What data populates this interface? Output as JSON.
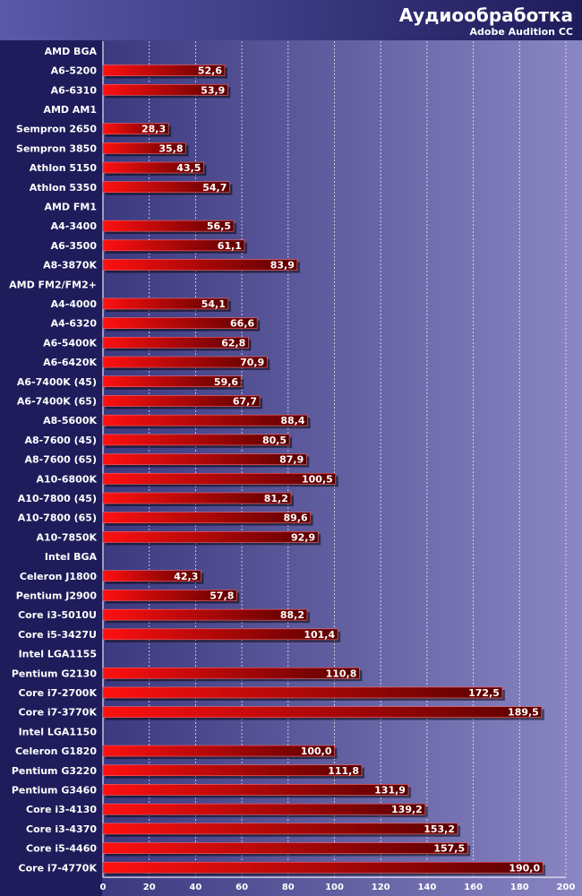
{
  "chart_data": {
    "type": "bar",
    "orientation": "horizontal",
    "title": "Аудиообработка",
    "subtitle": "Adobe Audition CC",
    "xlim": [
      0,
      200
    ],
    "xticks": [
      0,
      20,
      40,
      60,
      80,
      100,
      120,
      140,
      160,
      180,
      200
    ],
    "grid": true,
    "rows": [
      {
        "label": "AMD BGA",
        "group": true
      },
      {
        "label": "A6-5200",
        "value": 52.6,
        "value_label": "52,6"
      },
      {
        "label": "A6-6310",
        "value": 53.9,
        "value_label": "53,9"
      },
      {
        "label": "AMD AM1",
        "group": true
      },
      {
        "label": "Sempron 2650",
        "value": 28.3,
        "value_label": "28,3"
      },
      {
        "label": "Sempron 3850",
        "value": 35.8,
        "value_label": "35,8"
      },
      {
        "label": "Athlon 5150",
        "value": 43.5,
        "value_label": "43,5"
      },
      {
        "label": "Athlon 5350",
        "value": 54.7,
        "value_label": "54,7"
      },
      {
        "label": "AMD FM1",
        "group": true
      },
      {
        "label": "A4-3400",
        "value": 56.5,
        "value_label": "56,5"
      },
      {
        "label": "A6-3500",
        "value": 61.1,
        "value_label": "61,1"
      },
      {
        "label": "A8-3870K",
        "value": 83.9,
        "value_label": "83,9"
      },
      {
        "label": "AMD FM2/FM2+",
        "group": true
      },
      {
        "label": "A4-4000",
        "value": 54.1,
        "value_label": "54,1"
      },
      {
        "label": "A4-6320",
        "value": 66.6,
        "value_label": "66,6"
      },
      {
        "label": "A6-5400K",
        "value": 62.8,
        "value_label": "62,8"
      },
      {
        "label": "A6-6420K",
        "value": 70.9,
        "value_label": "70,9"
      },
      {
        "label": "A6-7400K (45)",
        "value": 59.6,
        "value_label": "59,6"
      },
      {
        "label": "A6-7400K (65)",
        "value": 67.7,
        "value_label": "67,7"
      },
      {
        "label": "A8-5600K",
        "value": 88.4,
        "value_label": "88,4"
      },
      {
        "label": "A8-7600 (45)",
        "value": 80.5,
        "value_label": "80,5"
      },
      {
        "label": "A8-7600 (65)",
        "value": 87.9,
        "value_label": "87,9"
      },
      {
        "label": "A10-6800K",
        "value": 100.5,
        "value_label": "100,5"
      },
      {
        "label": "A10-7800 (45)",
        "value": 81.2,
        "value_label": "81,2"
      },
      {
        "label": "A10-7800 (65)",
        "value": 89.6,
        "value_label": "89,6"
      },
      {
        "label": "A10-7850K",
        "value": 92.9,
        "value_label": "92,9"
      },
      {
        "label": "Intel BGA",
        "group": true
      },
      {
        "label": "Celeron J1800",
        "value": 42.3,
        "value_label": "42,3"
      },
      {
        "label": "Pentium J2900",
        "value": 57.8,
        "value_label": "57,8"
      },
      {
        "label": "Core i3-5010U",
        "value": 88.2,
        "value_label": "88,2"
      },
      {
        "label": "Core i5-3427U",
        "value": 101.4,
        "value_label": "101,4"
      },
      {
        "label": "Intel LGA1155",
        "group": true
      },
      {
        "label": "Pentium G2130",
        "value": 110.8,
        "value_label": "110,8"
      },
      {
        "label": "Core i7-2700K",
        "value": 172.5,
        "value_label": "172,5"
      },
      {
        "label": "Core i7-3770K",
        "value": 189.5,
        "value_label": "189,5"
      },
      {
        "label": "Intel LGA1150",
        "group": true
      },
      {
        "label": "Celeron G1820",
        "value": 100.0,
        "value_label": "100,0"
      },
      {
        "label": "Pentium G3220",
        "value": 111.8,
        "value_label": "111,8"
      },
      {
        "label": "Pentium G3460",
        "value": 131.9,
        "value_label": "131,9"
      },
      {
        "label": "Core i3-4130",
        "value": 139.2,
        "value_label": "139,2"
      },
      {
        "label": "Core i3-4370",
        "value": 153.2,
        "value_label": "153,2"
      },
      {
        "label": "Core i5-4460",
        "value": 157.5,
        "value_label": "157,5"
      },
      {
        "label": "Core i7-4770K",
        "value": 190.0,
        "value_label": "190,0"
      }
    ]
  },
  "colors": {
    "bar_light": "#ff1010",
    "bar_dark": "#5a0000",
    "label_panel": "#1e1c5a",
    "plot_left": "#2a2870",
    "plot_right": "#8a86c4",
    "header_left": "#5a58a8",
    "header_right": "#1e1c5a"
  }
}
